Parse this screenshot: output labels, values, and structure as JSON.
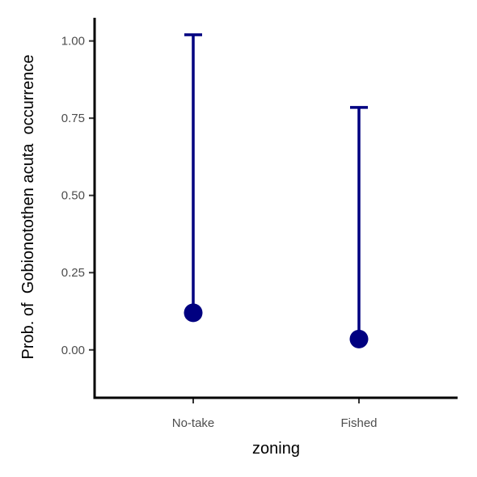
{
  "chart_data": {
    "type": "scatter",
    "xlabel": "zoning",
    "ylabel": "Prob. of  Gobionotothen acuta  occurrence",
    "categories": [
      "No-take",
      "Fished"
    ],
    "points": [
      {
        "category": "No-take",
        "estimate": 0.12,
        "upper": 1.02
      },
      {
        "category": "Fished",
        "estimate": 0.035,
        "upper": 0.785
      }
    ],
    "yticks": [
      0.0,
      0.25,
      0.5,
      0.75,
      1.0
    ],
    "ytick_labels": [
      "0.00",
      "0.25",
      "0.50",
      "0.75",
      "1.00"
    ],
    "ylim": [
      -0.155,
      1.075
    ],
    "grid": false,
    "color": "#000080"
  }
}
